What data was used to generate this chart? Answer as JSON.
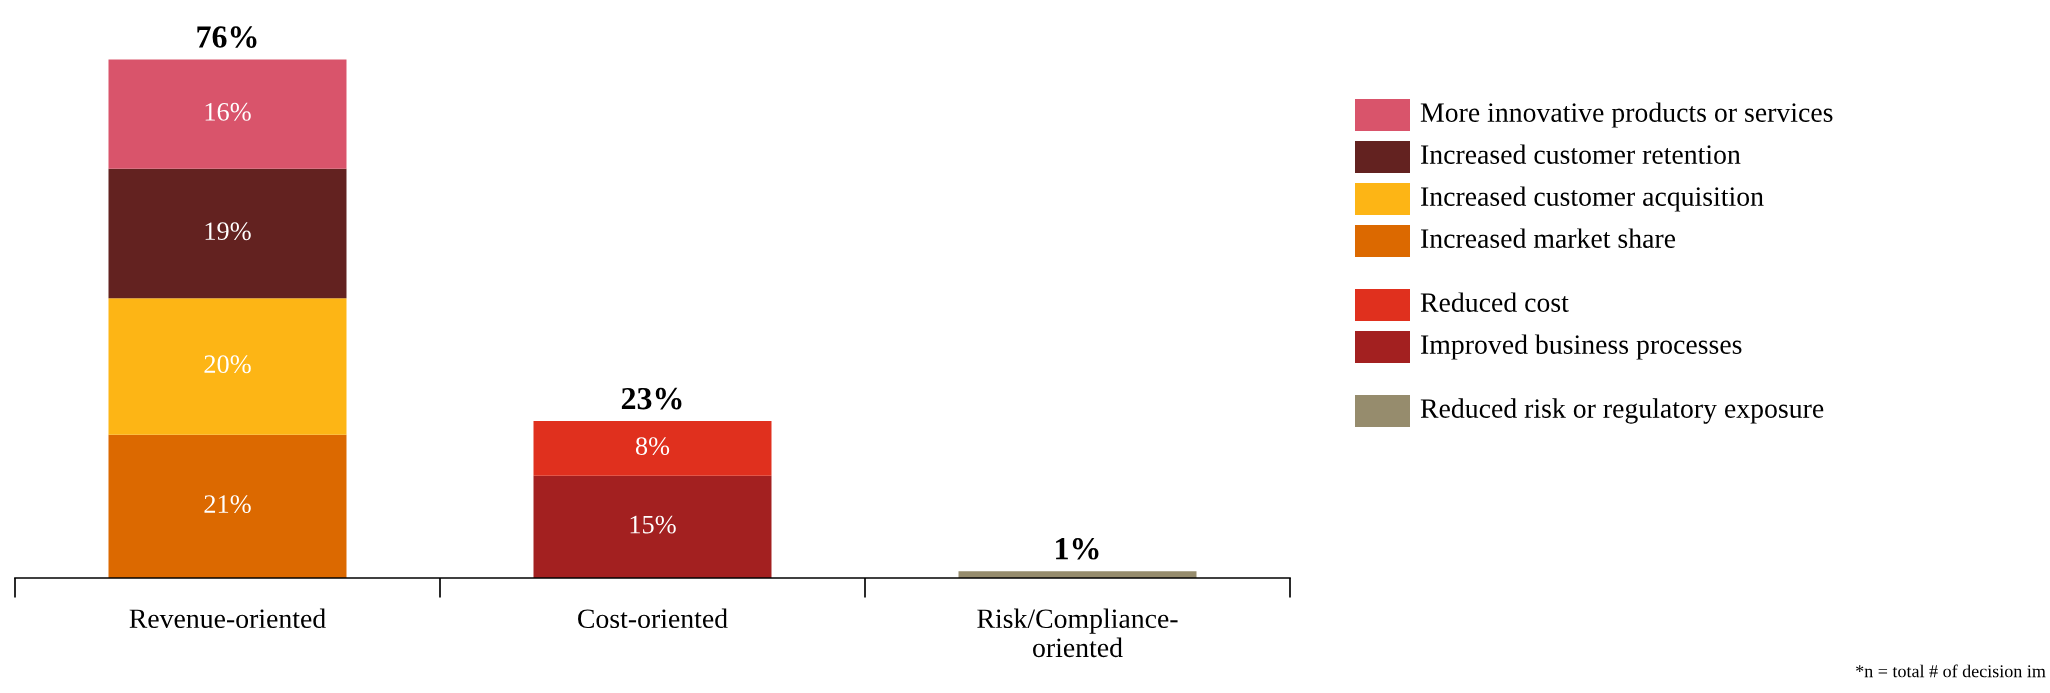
{
  "chart_data": {
    "type": "bar",
    "stacked": true,
    "categories": [
      "Revenue-oriented",
      "Cost-oriented",
      "Risk/Compliance-\noriented"
    ],
    "series": [
      {
        "name": "Increased market share",
        "color": "#dc6900",
        "values": [
          21,
          null,
          null
        ],
        "value_labels": [
          "21%",
          null,
          null
        ]
      },
      {
        "name": "Increased customer acquisition",
        "color": "#fdb515",
        "values": [
          20,
          null,
          null
        ],
        "value_labels": [
          "20%",
          null,
          null
        ]
      },
      {
        "name": "Increased customer retention",
        "color": "#632220",
        "values": [
          19,
          null,
          null
        ],
        "value_labels": [
          "19%",
          null,
          null
        ]
      },
      {
        "name": "More innovative products or services",
        "color": "#d9546b",
        "values": [
          16,
          null,
          null
        ],
        "value_labels": [
          "16%",
          null,
          null
        ]
      },
      {
        "name": "Improved business processes",
        "color": "#a32020",
        "values": [
          null,
          15,
          null
        ],
        "value_labels": [
          null,
          "15%",
          null
        ]
      },
      {
        "name": "Reduced cost",
        "color": "#e0301e",
        "values": [
          null,
          8,
          null
        ],
        "value_labels": [
          null,
          "8%",
          null
        ]
      },
      {
        "name": "Reduced risk or regulatory exposure",
        "color": "#968c6d",
        "values": [
          null,
          null,
          1
        ],
        "value_labels": [
          null,
          null,
          null
        ]
      }
    ],
    "totals": [
      "76%",
      "23%",
      "1%"
    ],
    "legend": "right",
    "grid": false,
    "annotations": [
      "*n = total # of decision im"
    ]
  }
}
